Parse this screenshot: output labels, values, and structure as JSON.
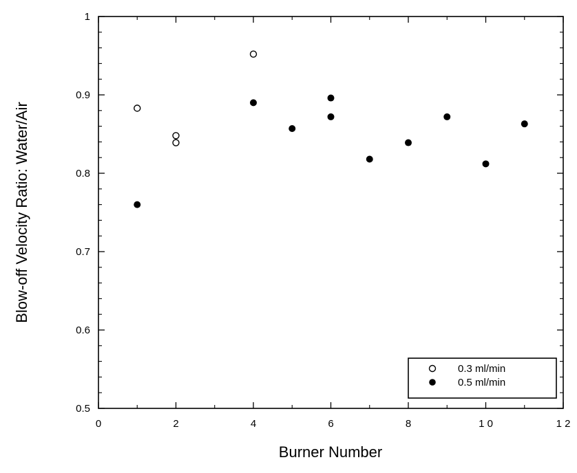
{
  "chart_data": {
    "type": "scatter",
    "xlabel": "Burner Number",
    "ylabel": "Blow-off Velocity Ratio:  Water/Air",
    "xlim": [
      0,
      12
    ],
    "ylim": [
      0.5,
      1
    ],
    "x_ticks": [
      0,
      2,
      4,
      6,
      8,
      10,
      12
    ],
    "x_tick_labels": [
      "0",
      "2",
      "4",
      "6",
      "8",
      "1 0",
      "1 2"
    ],
    "y_ticks": [
      0.5,
      0.6,
      0.7,
      0.8,
      0.9,
      1
    ],
    "y_tick_labels": [
      "0.5",
      "0.6",
      "0.7",
      "0.8",
      "0.9",
      "1"
    ],
    "grid": false,
    "legend_position": "bottom-right",
    "series": [
      {
        "name": "0.3 ml/min",
        "marker": "open-circle",
        "x": [
          1,
          2,
          2,
          4
        ],
        "y": [
          0.883,
          0.848,
          0.839,
          0.952
        ]
      },
      {
        "name": "0.5 ml/min",
        "marker": "filled-circle",
        "x": [
          1,
          4,
          5,
          6,
          6,
          7,
          8,
          9,
          10,
          11
        ],
        "y": [
          0.76,
          0.89,
          0.857,
          0.896,
          0.872,
          0.818,
          0.839,
          0.872,
          0.812,
          0.863
        ]
      }
    ]
  }
}
